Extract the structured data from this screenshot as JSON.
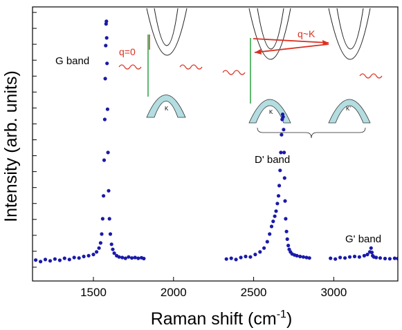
{
  "chart_data": {
    "type": "scatter",
    "title": "",
    "xlabel": "Raman shift (cm",
    "xlabel_sup": "-1",
    "xlabel_close": ")",
    "ylabel": "Intensity (arb. units)",
    "xlim": [
      1120,
      3400
    ],
    "ylim": [
      0,
      1.0
    ],
    "x_ticks": [
      1500,
      2000,
      2500,
      3000
    ],
    "x_tick_labels": [
      "1500",
      "2000",
      "2500",
      "3000"
    ],
    "y_tick_count": 17,
    "grid": false,
    "colors": {
      "points": "#1a1aa8",
      "laser": "#d93020",
      "transition": "#2aa040",
      "valence": "#b3dde0"
    },
    "annotations": {
      "g_band": "G band",
      "d_band": "D' band",
      "g2_band": "G' band",
      "q0": "q=0",
      "qk": "q~K",
      "k1": "K",
      "k2": "K",
      "k3": "K'"
    },
    "series": [
      {
        "segment": "G",
        "x": [
          1140,
          1170,
          1200,
          1230,
          1260,
          1290,
          1320,
          1350,
          1380,
          1410,
          1440,
          1470,
          1500,
          1520,
          1535,
          1545,
          1552,
          1558,
          1563,
          1567,
          1571,
          1574,
          1577,
          1579,
          1581,
          1583,
          1585,
          1588,
          1591,
          1595,
          1600,
          1606,
          1613,
          1621,
          1630,
          1645,
          1660,
          1680,
          1700,
          1720,
          1740,
          1760,
          1780,
          1800,
          1815
        ],
        "y": [
          0.028,
          0.022,
          0.03,
          0.025,
          0.032,
          0.027,
          0.035,
          0.03,
          0.038,
          0.036,
          0.042,
          0.045,
          0.05,
          0.06,
          0.075,
          0.095,
          0.13,
          0.19,
          0.28,
          0.42,
          0.58,
          0.74,
          0.87,
          0.955,
          0.965,
          0.9,
          0.8,
          0.62,
          0.45,
          0.3,
          0.19,
          0.13,
          0.09,
          0.07,
          0.055,
          0.045,
          0.04,
          0.038,
          0.035,
          0.04,
          0.036,
          0.038,
          0.035,
          0.037,
          0.034
        ]
      },
      {
        "segment": "D",
        "x": [
          2330,
          2360,
          2390,
          2420,
          2450,
          2480,
          2510,
          2540,
          2565,
          2585,
          2600,
          2612,
          2622,
          2632,
          2640,
          2648,
          2655,
          2660,
          2665,
          2670,
          2674,
          2678,
          2681,
          2684,
          2687,
          2690,
          2693,
          2696,
          2700,
          2705,
          2710,
          2716,
          2722,
          2730,
          2740,
          2755,
          2770,
          2790,
          2810,
          2830,
          2848
        ],
        "y": [
          0.032,
          0.035,
          0.03,
          0.038,
          0.042,
          0.04,
          0.05,
          0.06,
          0.075,
          0.1,
          0.13,
          0.16,
          0.18,
          0.2,
          0.22,
          0.25,
          0.28,
          0.32,
          0.38,
          0.45,
          0.52,
          0.58,
          0.6,
          0.59,
          0.54,
          0.45,
          0.35,
          0.26,
          0.19,
          0.14,
          0.11,
          0.085,
          0.07,
          0.06,
          0.052,
          0.048,
          0.045,
          0.042,
          0.04,
          0.038,
          0.036
        ]
      },
      {
        "segment": "G2",
        "x": [
          2980,
          3010,
          3040,
          3070,
          3100,
          3130,
          3160,
          3190,
          3210,
          3225,
          3233,
          3238,
          3243,
          3250,
          3265,
          3290,
          3320,
          3350,
          3380,
          3400
        ],
        "y": [
          0.035,
          0.032,
          0.038,
          0.036,
          0.04,
          0.042,
          0.04,
          0.045,
          0.05,
          0.06,
          0.075,
          0.058,
          0.045,
          0.04,
          0.038,
          0.036,
          0.034,
          0.033,
          0.035,
          0.034
        ]
      }
    ]
  }
}
